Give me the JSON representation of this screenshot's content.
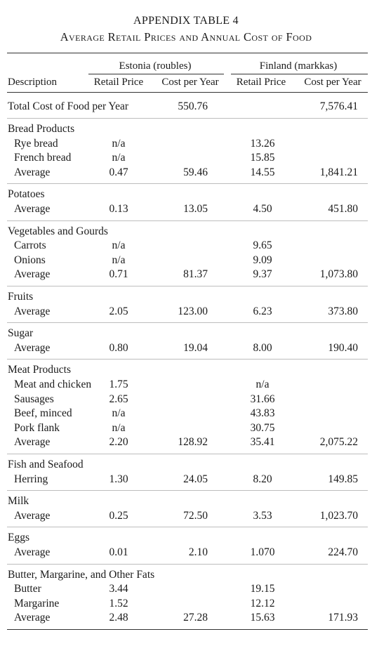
{
  "title": "APPENDIX TABLE 4",
  "subtitle": "Average Retail Prices and Annual Cost of Food",
  "header": {
    "description": "Description",
    "estonia": "Estonia (roubles)",
    "finland": "Finland (markkas)",
    "retail_price": "Retail Price",
    "cost_per_year": "Cost per Year"
  },
  "total": {
    "label": "Total Cost of Food per Year",
    "est_cost": "550.76",
    "fin_cost": "7,576.41"
  },
  "groups": [
    {
      "name": "Bread Products",
      "rows": [
        {
          "label": "Rye bread",
          "est_price": "n/a",
          "est_cost": "",
          "fin_price": "13.26",
          "fin_cost": ""
        },
        {
          "label": "French bread",
          "est_price": "n/a",
          "est_cost": "",
          "fin_price": "15.85",
          "fin_cost": ""
        },
        {
          "label": "Average",
          "est_price": "0.47",
          "est_cost": "59.46",
          "fin_price": "14.55",
          "fin_cost": "1,841.21"
        }
      ]
    },
    {
      "name": "Potatoes",
      "rows": [
        {
          "label": "Average",
          "est_price": "0.13",
          "est_cost": "13.05",
          "fin_price": "4.50",
          "fin_cost": "451.80"
        }
      ]
    },
    {
      "name": "Vegetables and Gourds",
      "rows": [
        {
          "label": "Carrots",
          "est_price": "n/a",
          "est_cost": "",
          "fin_price": "9.65",
          "fin_cost": ""
        },
        {
          "label": "Onions",
          "est_price": "n/a",
          "est_cost": "",
          "fin_price": "9.09",
          "fin_cost": ""
        },
        {
          "label": "Average",
          "est_price": "0.71",
          "est_cost": "81.37",
          "fin_price": "9.37",
          "fin_cost": "1,073.80"
        }
      ]
    },
    {
      "name": "Fruits",
      "rows": [
        {
          "label": "Average",
          "est_price": "2.05",
          "est_cost": "123.00",
          "fin_price": "6.23",
          "fin_cost": "373.80"
        }
      ]
    },
    {
      "name": "Sugar",
      "rows": [
        {
          "label": "Average",
          "est_price": "0.80",
          "est_cost": "19.04",
          "fin_price": "8.00",
          "fin_cost": "190.40"
        }
      ]
    },
    {
      "name": "Meat Products",
      "rows": [
        {
          "label": "Meat and chicken",
          "est_price": "1.75",
          "est_cost": "",
          "fin_price": "n/a",
          "fin_cost": ""
        },
        {
          "label": "Sausages",
          "est_price": "2.65",
          "est_cost": "",
          "fin_price": "31.66",
          "fin_cost": ""
        },
        {
          "label": "Beef, minced",
          "est_price": "n/a",
          "est_cost": "",
          "fin_price": "43.83",
          "fin_cost": ""
        },
        {
          "label": "Pork flank",
          "est_price": "n/a",
          "est_cost": "",
          "fin_price": "30.75",
          "fin_cost": ""
        },
        {
          "label": "Average",
          "est_price": "2.20",
          "est_cost": "128.92",
          "fin_price": "35.41",
          "fin_cost": "2,075.22"
        }
      ]
    },
    {
      "name": "Fish and Seafood",
      "rows": [
        {
          "label": "Herring",
          "est_price": "1.30",
          "est_cost": "24.05",
          "fin_price": "8.20",
          "fin_cost": "149.85"
        }
      ]
    },
    {
      "name": "Milk",
      "rows": [
        {
          "label": "Average",
          "est_price": "0.25",
          "est_cost": "72.50",
          "fin_price": "3.53",
          "fin_cost": "1,023.70"
        }
      ]
    },
    {
      "name": "Eggs",
      "rows": [
        {
          "label": "Average",
          "est_price": "0.01",
          "est_cost": "2.10",
          "fin_price": "1.070",
          "fin_cost": "224.70"
        }
      ]
    },
    {
      "name": "Butter, Margarine, and Other Fats",
      "rows": [
        {
          "label": "Butter",
          "est_price": "3.44",
          "est_cost": "",
          "fin_price": "19.15",
          "fin_cost": ""
        },
        {
          "label": "Margarine",
          "est_price": "1.52",
          "est_cost": "",
          "fin_price": "12.12",
          "fin_cost": ""
        },
        {
          "label": "Average",
          "est_price": "2.48",
          "est_cost": "27.28",
          "fin_price": "15.63",
          "fin_cost": "171.93"
        }
      ]
    }
  ]
}
